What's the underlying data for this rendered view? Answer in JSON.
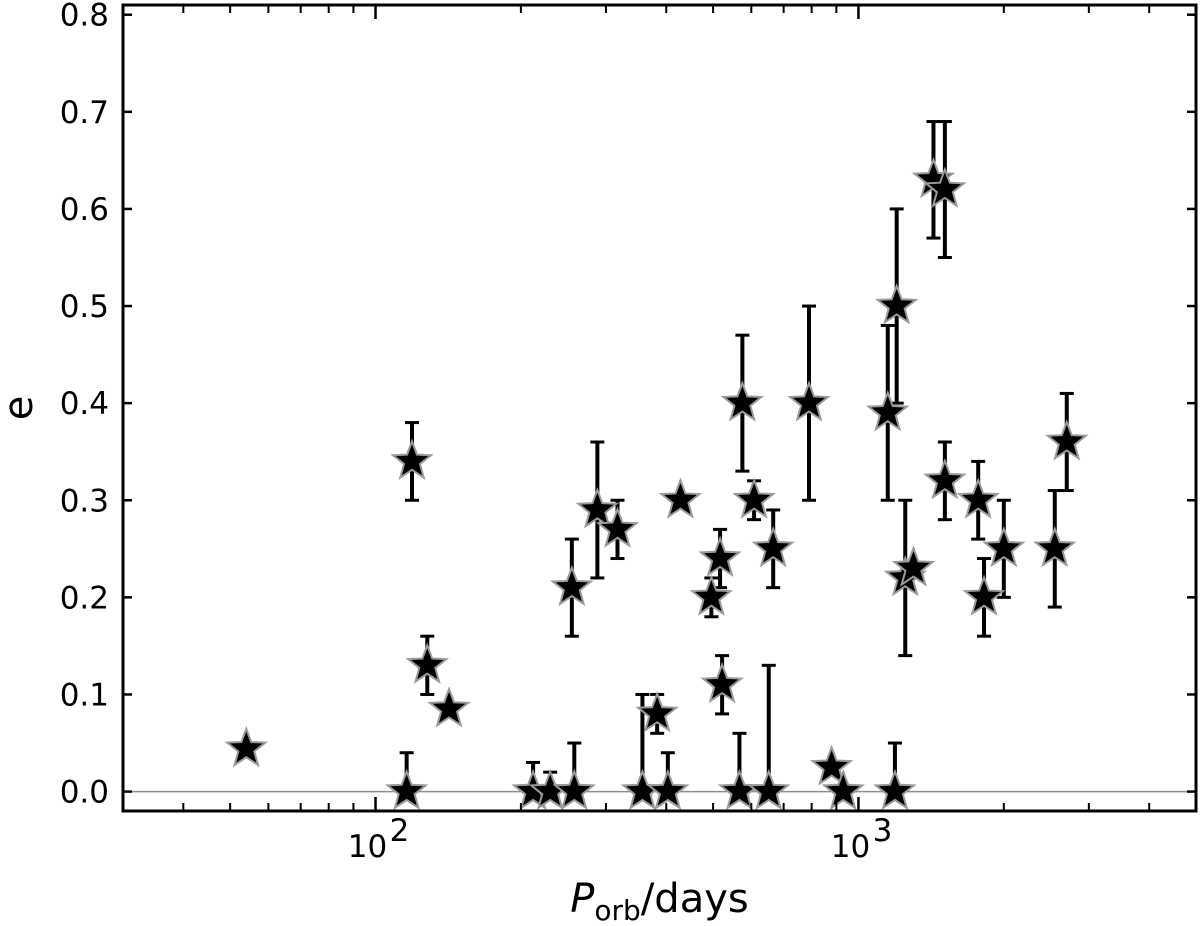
{
  "chart_data": {
    "type": "scatter",
    "xscale": "log",
    "xlim": [
      30,
      5000
    ],
    "ylim": [
      -0.02,
      0.81
    ],
    "ylabel": "e",
    "xlabel": {
      "main": "P",
      "sub": "orb",
      "suffix": "/days"
    },
    "yticks": [
      "0.0",
      "0.1",
      "0.2",
      "0.3",
      "0.4",
      "0.5",
      "0.6",
      "0.7",
      "0.8"
    ],
    "xticks_major": [
      {
        "value": 100,
        "base": "10",
        "exp": "2"
      },
      {
        "value": 1000,
        "base": "10",
        "exp": "3"
      }
    ],
    "reference_line_y": 0,
    "marker": "star",
    "marker_color": "#000000",
    "marker_edge": "#9a9a9a",
    "grid": false,
    "points": [
      {
        "x": 54,
        "y": 0.044
      },
      {
        "x": 116,
        "y": 0.0,
        "lo": 0.0,
        "hi": 0.04
      },
      {
        "x": 119,
        "y": 0.34,
        "lo": 0.3,
        "hi": 0.38
      },
      {
        "x": 128,
        "y": 0.13,
        "lo": 0.1,
        "hi": 0.16
      },
      {
        "x": 142,
        "y": 0.085
      },
      {
        "x": 212,
        "y": 0.0,
        "lo": 0.0,
        "hi": 0.03
      },
      {
        "x": 230,
        "y": 0.0,
        "lo": 0.0,
        "hi": 0.02
      },
      {
        "x": 255,
        "y": 0.21,
        "lo": 0.16,
        "hi": 0.26
      },
      {
        "x": 258,
        "y": 0.0,
        "lo": 0.0,
        "hi": 0.05
      },
      {
        "x": 288,
        "y": 0.29,
        "lo": 0.22,
        "hi": 0.36
      },
      {
        "x": 317,
        "y": 0.27,
        "lo": 0.24,
        "hi": 0.3
      },
      {
        "x": 357,
        "y": 0.0,
        "lo": 0.0,
        "hi": 0.1
      },
      {
        "x": 383,
        "y": 0.08,
        "lo": 0.06,
        "hi": 0.1
      },
      {
        "x": 403,
        "y": 0.0,
        "lo": 0.0,
        "hi": 0.04
      },
      {
        "x": 428,
        "y": 0.3
      },
      {
        "x": 496,
        "y": 0.2,
        "lo": 0.18,
        "hi": 0.22
      },
      {
        "x": 517,
        "y": 0.24,
        "lo": 0.21,
        "hi": 0.27
      },
      {
        "x": 522,
        "y": 0.11,
        "lo": 0.08,
        "hi": 0.14
      },
      {
        "x": 567,
        "y": 0.0,
        "lo": 0.0,
        "hi": 0.06
      },
      {
        "x": 575,
        "y": 0.4,
        "lo": 0.33,
        "hi": 0.47
      },
      {
        "x": 608,
        "y": 0.3,
        "lo": 0.28,
        "hi": 0.32
      },
      {
        "x": 652,
        "y": 0.0,
        "lo": 0.0,
        "hi": 0.13
      },
      {
        "x": 666,
        "y": 0.25,
        "lo": 0.21,
        "hi": 0.29
      },
      {
        "x": 790,
        "y": 0.4,
        "lo": 0.3,
        "hi": 0.5
      },
      {
        "x": 880,
        "y": 0.025
      },
      {
        "x": 930,
        "y": 0.0
      },
      {
        "x": 1150,
        "y": 0.39,
        "lo": 0.3,
        "hi": 0.48
      },
      {
        "x": 1190,
        "y": 0.0,
        "lo": 0.0,
        "hi": 0.05
      },
      {
        "x": 1200,
        "y": 0.5,
        "lo": 0.4,
        "hi": 0.6
      },
      {
        "x": 1250,
        "y": 0.22,
        "lo": 0.14,
        "hi": 0.3
      },
      {
        "x": 1300,
        "y": 0.23
      },
      {
        "x": 1430,
        "y": 0.63,
        "lo": 0.57,
        "hi": 0.69
      },
      {
        "x": 1510,
        "y": 0.62,
        "lo": 0.55,
        "hi": 0.69
      },
      {
        "x": 1510,
        "y": 0.32,
        "lo": 0.28,
        "hi": 0.36
      },
      {
        "x": 1770,
        "y": 0.3,
        "lo": 0.26,
        "hi": 0.34
      },
      {
        "x": 1820,
        "y": 0.2,
        "lo": 0.16,
        "hi": 0.24
      },
      {
        "x": 2000,
        "y": 0.25,
        "lo": 0.2,
        "hi": 0.3
      },
      {
        "x": 2550,
        "y": 0.25,
        "lo": 0.19,
        "hi": 0.31
      },
      {
        "x": 2700,
        "y": 0.36,
        "lo": 0.31,
        "hi": 0.41
      }
    ]
  }
}
